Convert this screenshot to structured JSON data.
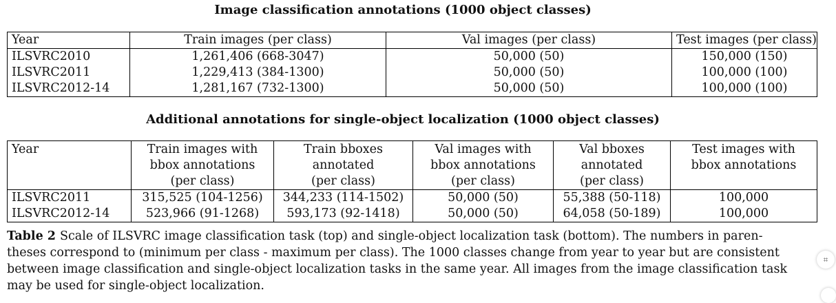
{
  "table1": {
    "title": "Image classification annotations (1000 object classes)",
    "headers": [
      "Year",
      "Train images (per class)",
      "Val images (per class)",
      "Test images (per class)"
    ],
    "rows": [
      [
        "ILSVRC2010",
        "1,261,406 (668-3047)",
        "50,000 (50)",
        "150,000 (150)"
      ],
      [
        "ILSVRC2011",
        "1,229,413 (384-1300)",
        "50,000 (50)",
        "100,000 (100)"
      ],
      [
        "ILSVRC2012-14",
        "1,281,167 (732-1300)",
        "50,000 (50)",
        "100,000 (100)"
      ]
    ]
  },
  "table2": {
    "title": "Additional annotations for single-object localization (1000 object classes)",
    "headers": [
      [
        "Year"
      ],
      [
        "Train images with",
        "bbox annotations",
        "(per class)"
      ],
      [
        "Train bboxes",
        "annotated",
        "(per class)"
      ],
      [
        "Val images with",
        "bbox annotations",
        "(per class)"
      ],
      [
        "Val bboxes",
        "annotated",
        "(per class)"
      ],
      [
        "Test images with",
        "bbox annotations"
      ]
    ],
    "rows": [
      [
        "ILSVRC2011",
        "315,525 (104-1256)",
        "344,233 (114-1502)",
        "50,000 (50)",
        "55,388 (50-118)",
        "100,000"
      ],
      [
        "ILSVRC2012-14",
        "523,966 (91-1268)",
        "593,173 (92-1418)",
        "50,000 (50)",
        "64,058 (50-189)",
        "100,000"
      ]
    ]
  },
  "caption": {
    "label": "Table 2",
    "text": "Scale of ILSVRC image classification task (top) and single-object localization task (bottom). The numbers in paren- theses correspond to (minimum per class - maximum per class). The 1000 classes change from year to year but are consistent between image classification and single-object localization tasks in the same year. All images from the image classification task may be used for single-object localization."
  },
  "widget": {
    "icon": "expand-icon",
    "glyph": "⌗"
  }
}
